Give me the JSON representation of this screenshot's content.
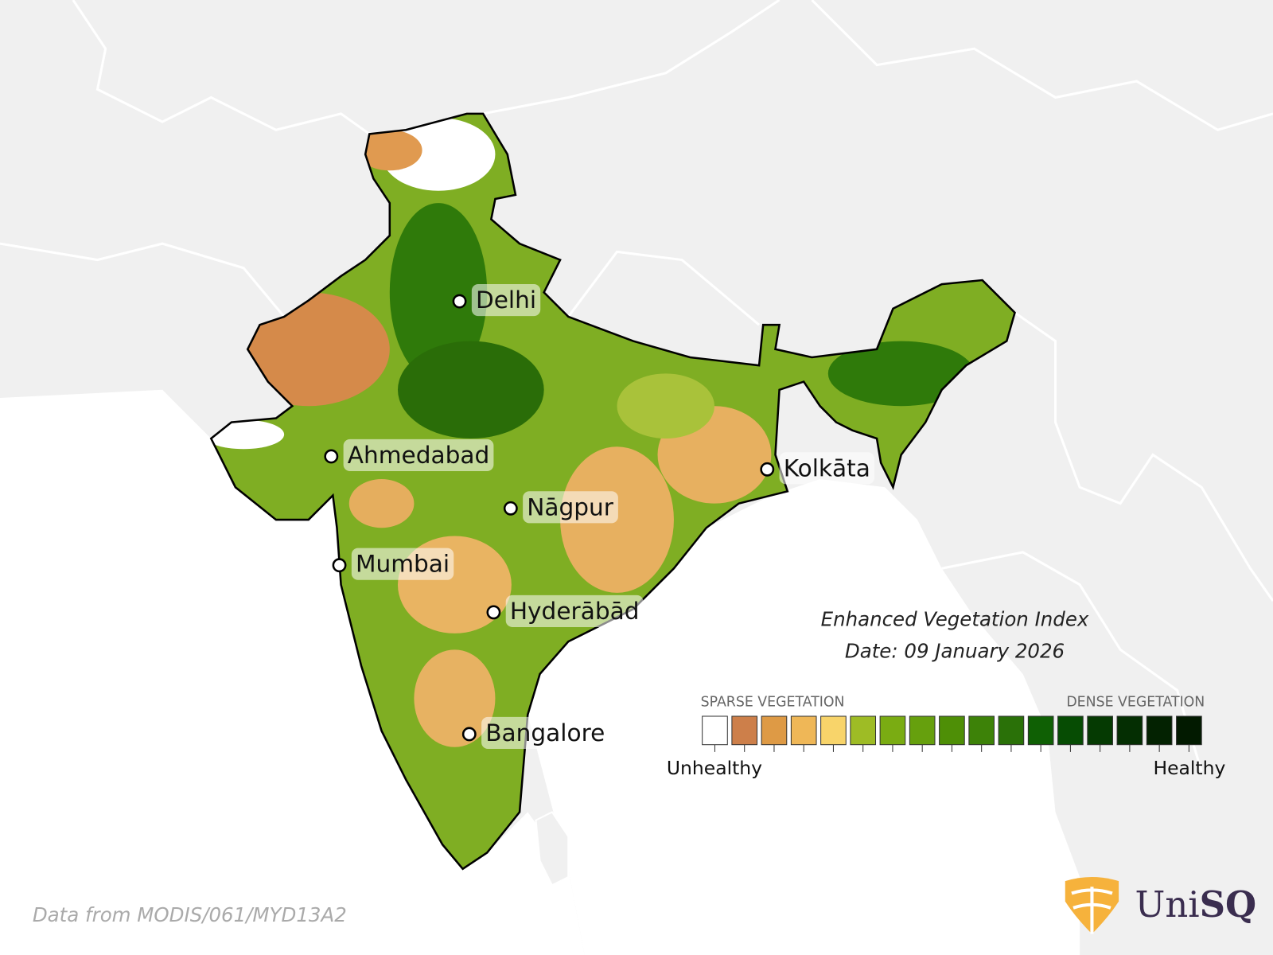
{
  "title": "Enhanced Vegetation Index",
  "date": "Date: 09 January 2026",
  "cities": [
    {
      "name": "Delhi"
    },
    {
      "name": "Ahmedabad"
    },
    {
      "name": "Nāgpur"
    },
    {
      "name": "Mumbai"
    },
    {
      "name": "Hyderābād"
    },
    {
      "name": "Bangalore"
    },
    {
      "name": "Kolkāta"
    }
  ],
  "legend": {
    "low_heading": "SPARSE VEGETATION",
    "high_heading": "DENSE VEGETATION",
    "low_label": "Unhealthy",
    "high_label": "Healthy",
    "colors": [
      "#ffffff",
      "#cd7f4a",
      "#de9a45",
      "#efb757",
      "#f8d46a",
      "#9ebc25",
      "#7aac12",
      "#66a00d",
      "#4e8f06",
      "#3d8208",
      "#2a7108",
      "#0f6004",
      "#064c03",
      "#053a02",
      "#042e02",
      "#032201",
      "#021a00"
    ]
  },
  "source": "Data from MODIS/061/MYD13A2",
  "logo": [
    "Uni",
    "SQ"
  ]
}
